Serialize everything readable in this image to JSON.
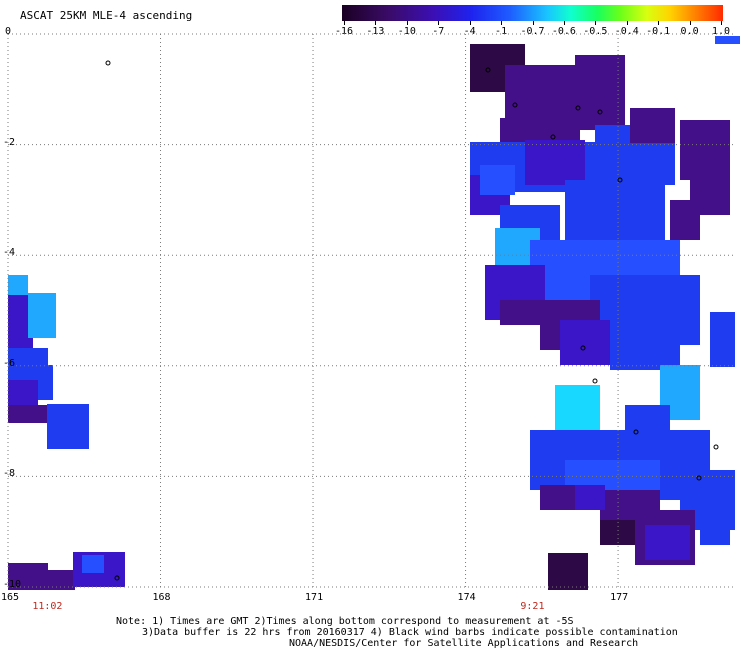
{
  "title": "ASCAT 25KM MLE-4 ascending",
  "colorbar": {
    "labels": [
      "-16",
      "-13",
      "-10",
      "-7",
      "-4",
      "-1",
      "-0.7",
      "-0.6",
      "-0.5",
      "-0.4",
      "-0.1",
      "0.0",
      "1.0"
    ]
  },
  "axes": {
    "x_ticks": [
      "165",
      "168",
      "171",
      "174",
      "177"
    ],
    "y_ticks": [
      "0",
      "-2",
      "-4",
      "-6",
      "-8",
      "-10"
    ],
    "lon_range": [
      165,
      179.3
    ],
    "lat_range": [
      -10,
      0
    ]
  },
  "time_labels": [
    {
      "text": "11:02",
      "lon": 165.4
    },
    {
      "text": "9:21",
      "lon": 175.0
    }
  ],
  "notes": {
    "line1": "Note: 1) Times are GMT 2)Times along bottom correspond to measurement at -5S",
    "line2": "3)Data buffer is 22 hrs from 20160317 4) Black wind barbs indicate possible contamination",
    "line3": "NOAA/NESDIS/Center for Satellite Applications and Research"
  },
  "colors": {
    "dark_purple": "#2d0a45",
    "purple": "#44108a",
    "indigo": "#3a16c8",
    "blue": "#1f3cf0",
    "blue2": "#2650ff",
    "light_blue": "#20a8ff",
    "cyan": "#19d8ff",
    "grid": "#7a7a7a"
  }
}
